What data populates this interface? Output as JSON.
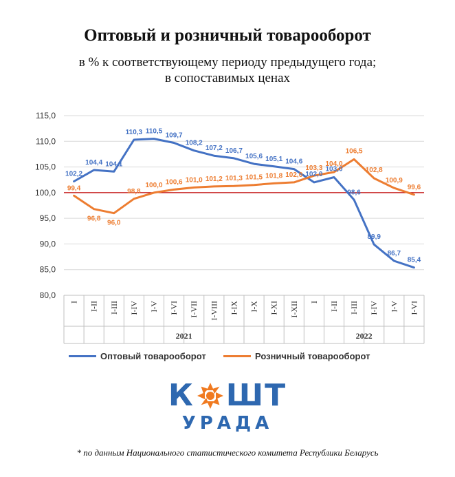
{
  "title": "Оптовый и розничный товарооборот",
  "subtitle_line1": "в % к соответствующему периоду предыдущего года;",
  "subtitle_line2": "в сопоставимых ценах",
  "footnote": "* по данным Национального статистического комитета  Республики Беларусь",
  "logo": {
    "text_left": "К",
    "text_right": "ШТ",
    "text_bottom": "УРАДА",
    "brand_color": "#2e68b0",
    "accent_color": "#f07a20"
  },
  "chart_data": {
    "type": "line",
    "categories": [
      "I",
      "I-II",
      "I-III",
      "I-IV",
      "I-V",
      "I-VI",
      "I-VII",
      "I-VIII",
      "I-IX",
      "I-X",
      "I-XI",
      "I-XII",
      "I",
      "I-II",
      "I-III",
      "I-IV",
      "I-V",
      "I-VI"
    ],
    "year_groups": [
      {
        "label": "2021",
        "start": 0,
        "end": 11
      },
      {
        "label": "2022",
        "start": 12,
        "end": 17
      }
    ],
    "series": [
      {
        "name": "Оптовый товарооборот",
        "color": "#4472c4",
        "values": [
          102.2,
          104.4,
          104.1,
          110.3,
          110.5,
          109.7,
          108.2,
          107.2,
          106.7,
          105.6,
          105.1,
          104.6,
          102.0,
          103.0,
          98.6,
          89.9,
          86.7,
          85.4
        ],
        "labels": [
          "102,2",
          "104,4",
          "104,1",
          "110,3",
          "110,5",
          "109,7",
          "108,2",
          "107,2",
          "106,7",
          "105,6",
          "105,1",
          "104,6",
          "102,0",
          "103,0",
          "98,6",
          "89,9",
          "86,7",
          "85,4"
        ]
      },
      {
        "name": "Розничный товарооборот",
        "color": "#ed7d31",
        "values": [
          99.4,
          96.8,
          96.0,
          98.8,
          100.0,
          100.6,
          101.0,
          101.2,
          101.3,
          101.5,
          101.8,
          102.0,
          103.3,
          104.0,
          106.5,
          102.8,
          100.9,
          99.6
        ],
        "labels": [
          "99,4",
          "96,8",
          "96,0",
          "98,8",
          "100,0",
          "100,6",
          "101,0",
          "101,2",
          "101,3",
          "101,5",
          "101,8",
          "102,0",
          "103,3",
          "104,0",
          "106,5",
          "102,8",
          "100,9",
          "99,6"
        ]
      }
    ],
    "yticks": [
      "80,0",
      "85,0",
      "90,0",
      "95,0",
      "100,0",
      "105,0",
      "110,0",
      "115,0"
    ],
    "ylim": [
      80,
      115
    ],
    "reference_line": {
      "value": 100,
      "color": "#c00000"
    },
    "grid": true,
    "legend_position": "bottom"
  }
}
